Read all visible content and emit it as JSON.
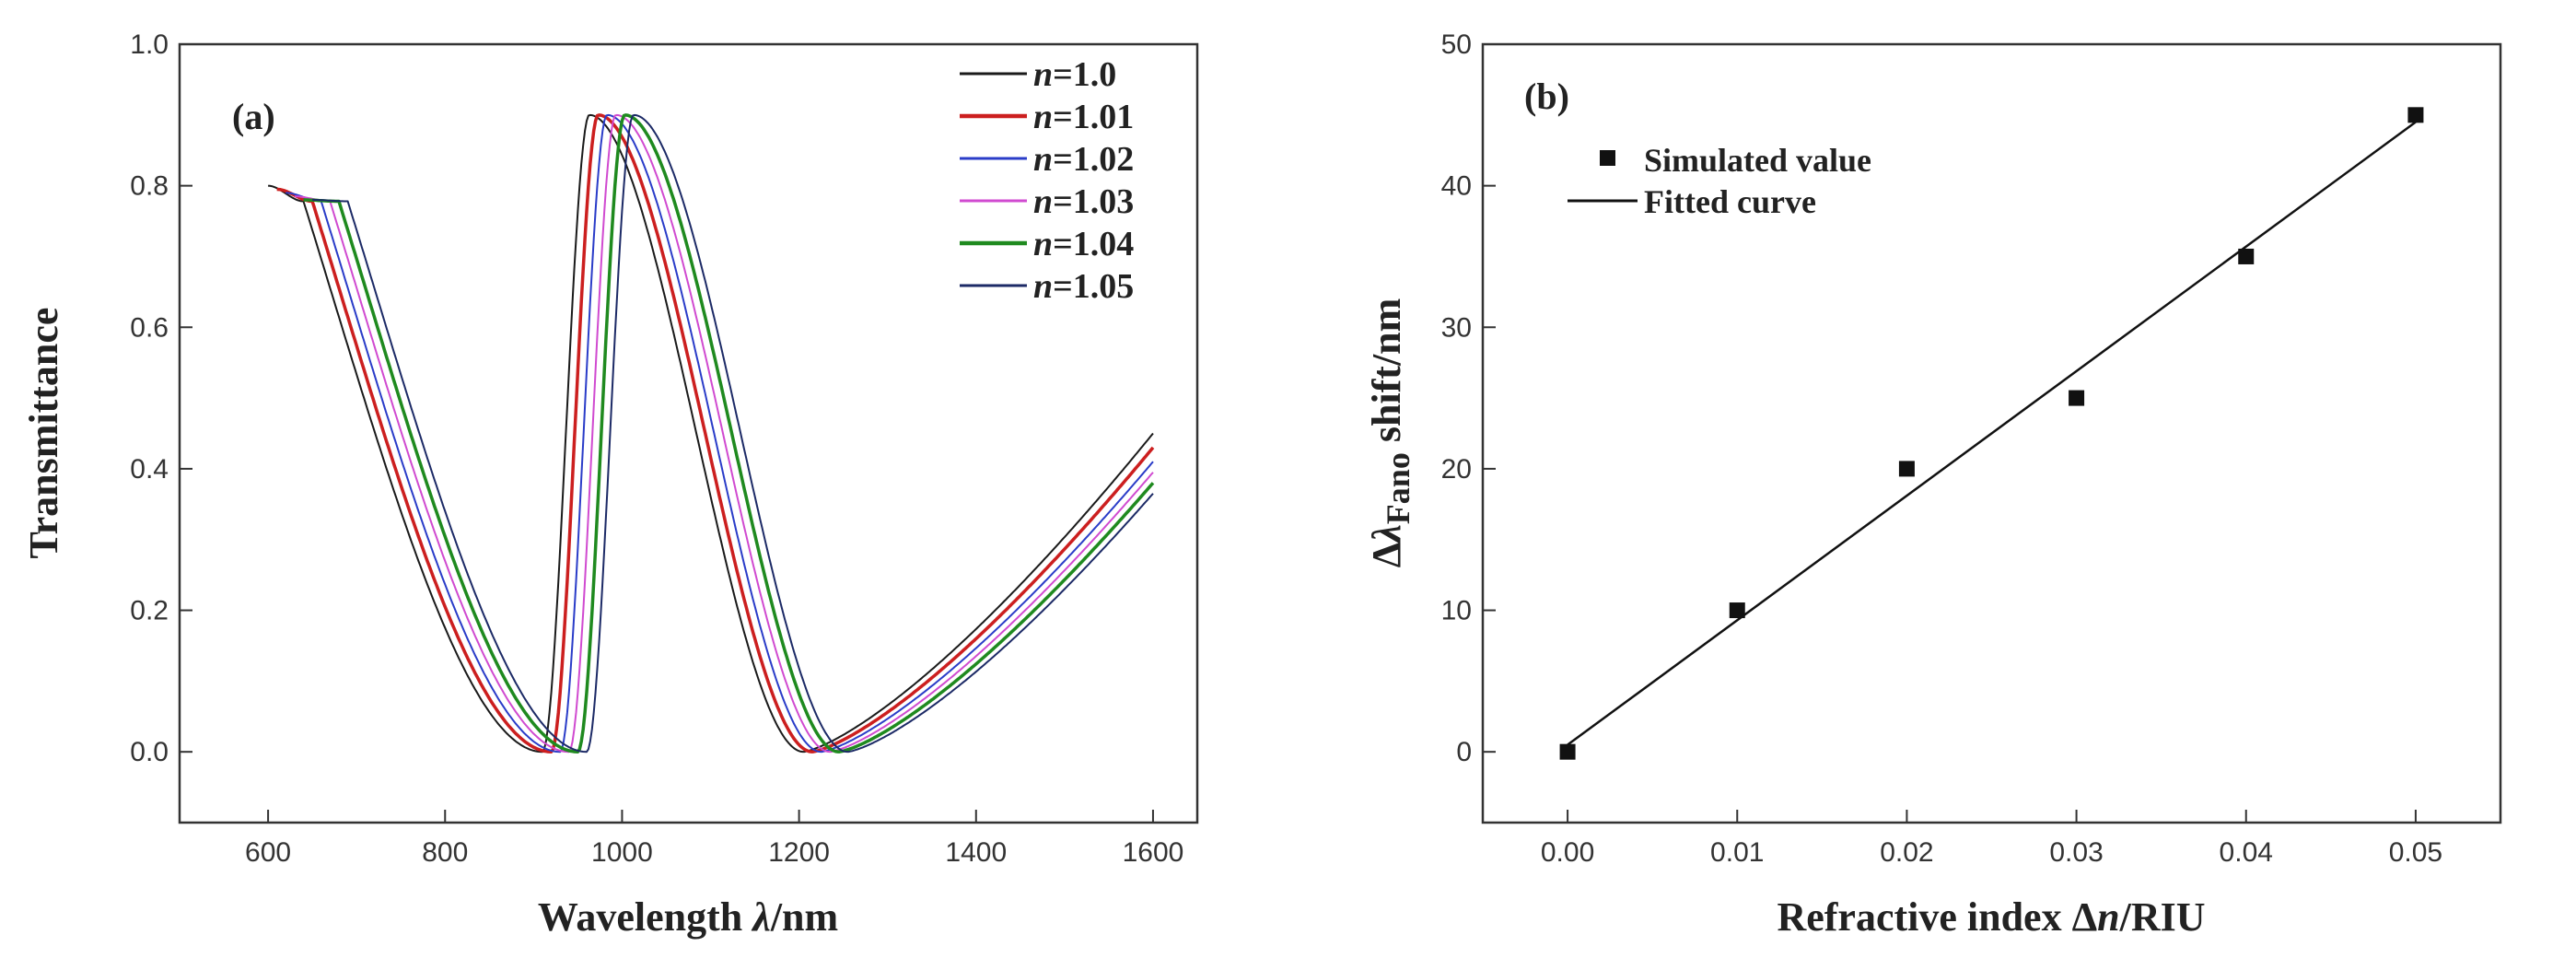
{
  "chart_data": [
    {
      "type": "line",
      "panel_label": "(a)",
      "xlabel_main": "Wavelength ",
      "xlabel_symbol": "λ",
      "xlabel_unit": "/nm",
      "ylabel": "Transmittance",
      "xlim": [
        500,
        1650
      ],
      "ylim": [
        -0.1,
        1.0
      ],
      "xticks": [
        600,
        800,
        1000,
        1200,
        1400,
        1600
      ],
      "yticks": [
        0.0,
        0.2,
        0.4,
        0.6,
        0.8,
        1.0
      ],
      "legend_position": "top-right",
      "x_range": [
        600,
        1600
      ],
      "series": [
        {
          "italic": "n",
          "name": "=1.0",
          "color": "#1a1a1a",
          "width": 2,
          "shift": 0,
          "start": 0.8,
          "end": 0.45
        },
        {
          "italic": "n",
          "name": "=1.01",
          "color": "#cc1f1f",
          "width": 3.5,
          "shift": 10,
          "start": 0.795,
          "end": 0.43
        },
        {
          "italic": "n",
          "name": "=1.02",
          "color": "#2a3cc8",
          "width": 2,
          "shift": 20,
          "start": 0.79,
          "end": 0.41
        },
        {
          "italic": "n",
          "name": "=1.03",
          "color": "#d04ad0",
          "width": 2,
          "shift": 30,
          "start": 0.785,
          "end": 0.395
        },
        {
          "italic": "n",
          "name": "=1.04",
          "color": "#1f8a1f",
          "width": 3.5,
          "shift": 40,
          "start": 0.78,
          "end": 0.38
        },
        {
          "italic": "n",
          "name": "=1.05",
          "color": "#1c2a66",
          "width": 2,
          "shift": 50,
          "start": 0.78,
          "end": 0.365
        }
      ],
      "features": {
        "shoulder_x": 640,
        "first_min_x": 910,
        "peak_x": 963,
        "peak_y": 0.9,
        "second_min_x": 1205
      }
    },
    {
      "type": "scatter",
      "panel_label": "(b)",
      "xlabel_main": "Refractive index Δ",
      "xlabel_symbol": "n",
      "xlabel_unit": "/RIU",
      "ylabel_delta": "Δ",
      "ylabel_symbol": "λ",
      "ylabel_sub": "Fano",
      "ylabel_rest": " shift/nm",
      "xlim": [
        -0.005,
        0.055
      ],
      "ylim": [
        -5,
        50
      ],
      "xticks": [
        "0.00",
        "0.01",
        "0.02",
        "0.03",
        "0.04",
        "0.05"
      ],
      "yticks": [
        0,
        10,
        20,
        30,
        40,
        50
      ],
      "legend_position": "top-left",
      "legend": {
        "marker_label": "Simulated value",
        "line_label": "Fitted curve"
      },
      "points": {
        "x": [
          0.0,
          0.01,
          0.02,
          0.03,
          0.04,
          0.05
        ],
        "y": [
          0,
          10,
          20,
          25,
          35,
          45
        ]
      },
      "fit": {
        "x": [
          0.0,
          0.05
        ],
        "y": [
          0.5,
          44.5
        ]
      }
    }
  ]
}
